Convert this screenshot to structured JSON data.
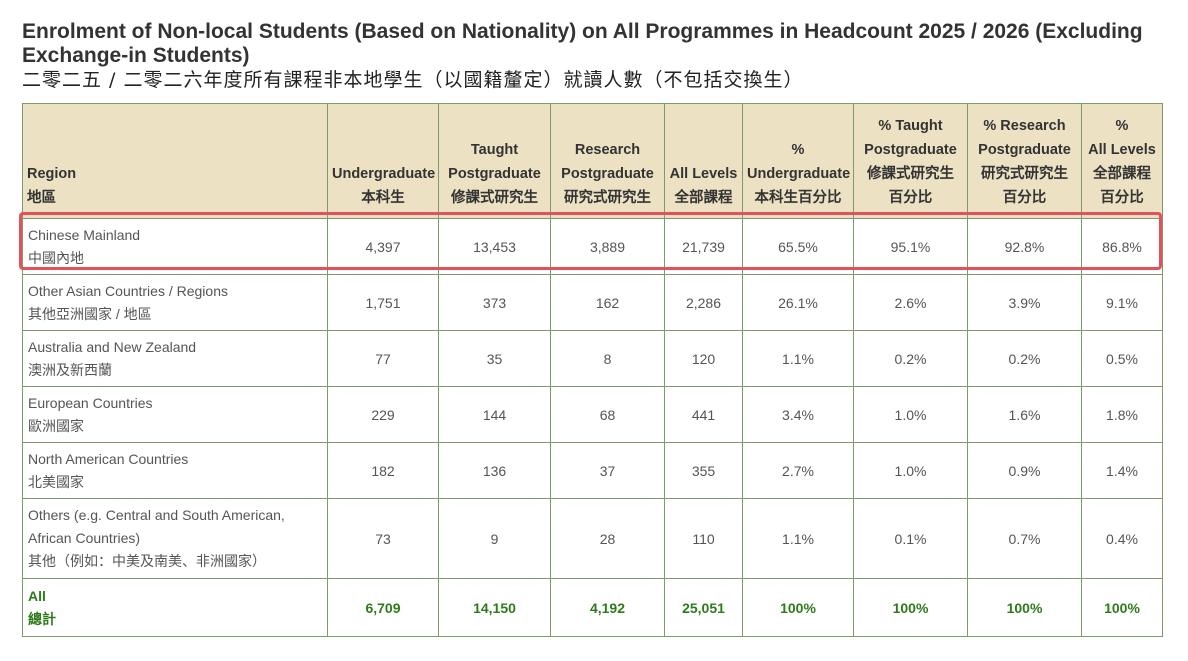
{
  "title": "Enrolment of Non-local Students (Based on Nationality) on All Programmes in Headcount 2025 / 2026 (Excluding Exchange-in Students)",
  "subtitle": "二零二五 / 二零二六年度所有課程非本地學生（以國籍釐定）就讀人數（不包括交換生）",
  "headers": [
    {
      "en": [
        "Region"
      ],
      "zh": [
        "地區"
      ]
    },
    {
      "en": [
        "Undergraduate"
      ],
      "zh": [
        "本科生"
      ]
    },
    {
      "en": [
        "Taught",
        "Postgraduate"
      ],
      "zh": [
        "修課式研究生"
      ]
    },
    {
      "en": [
        "Research",
        "Postgraduate"
      ],
      "zh": [
        "研究式研究生"
      ]
    },
    {
      "en": [
        "All Levels"
      ],
      "zh": [
        "全部課程"
      ]
    },
    {
      "en": [
        "%",
        "Undergraduate"
      ],
      "zh": [
        "本科生百分比"
      ]
    },
    {
      "en": [
        "% Taught",
        "Postgraduate"
      ],
      "zh": [
        "修課式研究生",
        "百分比"
      ]
    },
    {
      "en": [
        "% Research",
        "Postgraduate"
      ],
      "zh": [
        "研究式研究生",
        "百分比"
      ]
    },
    {
      "en": [
        "%",
        "All Levels"
      ],
      "zh": [
        "全部課程",
        "百分比"
      ]
    }
  ],
  "rows": [
    {
      "region_en": [
        "Chinese Mainland"
      ],
      "region_zh": "中國內地",
      "values": [
        "4,397",
        "13,453",
        "3,889",
        "21,739",
        "65.5%",
        "95.1%",
        "92.8%",
        "86.8%"
      ]
    },
    {
      "region_en": [
        "Other Asian Countries / Regions"
      ],
      "region_zh": "其他亞洲國家 / 地區",
      "values": [
        "1,751",
        "373",
        "162",
        "2,286",
        "26.1%",
        "2.6%",
        "3.9%",
        "9.1%"
      ]
    },
    {
      "region_en": [
        "Australia and New Zealand"
      ],
      "region_zh": "澳洲及新西蘭",
      "values": [
        "77",
        "35",
        "8",
        "120",
        "1.1%",
        "0.2%",
        "0.2%",
        "0.5%"
      ]
    },
    {
      "region_en": [
        "European Countries"
      ],
      "region_zh": "歐洲國家",
      "values": [
        "229",
        "144",
        "68",
        "441",
        "3.4%",
        "1.0%",
        "1.6%",
        "1.8%"
      ]
    },
    {
      "region_en": [
        "North American Countries"
      ],
      "region_zh": "北美國家",
      "values": [
        "182",
        "136",
        "37",
        "355",
        "2.7%",
        "1.0%",
        "0.9%",
        "1.4%"
      ]
    },
    {
      "region_en": [
        "Others (e.g. Central and South American,",
        "African Countries)"
      ],
      "region_zh": "其他（例如：中美及南美、非洲國家）",
      "values": [
        "73",
        "9",
        "28",
        "110",
        "1.1%",
        "0.1%",
        "0.7%",
        "0.4%"
      ]
    }
  ],
  "total": {
    "region_en": "All",
    "region_zh": "總計",
    "values": [
      "6,709",
      "14,150",
      "4,192",
      "25,051",
      "100%",
      "100%",
      "100%",
      "100%"
    ]
  },
  "colors": {
    "header_bg": "#ede1c4",
    "border": "#7d9a6c",
    "total_text": "#2f7a1a",
    "highlight": "#e5505a"
  }
}
